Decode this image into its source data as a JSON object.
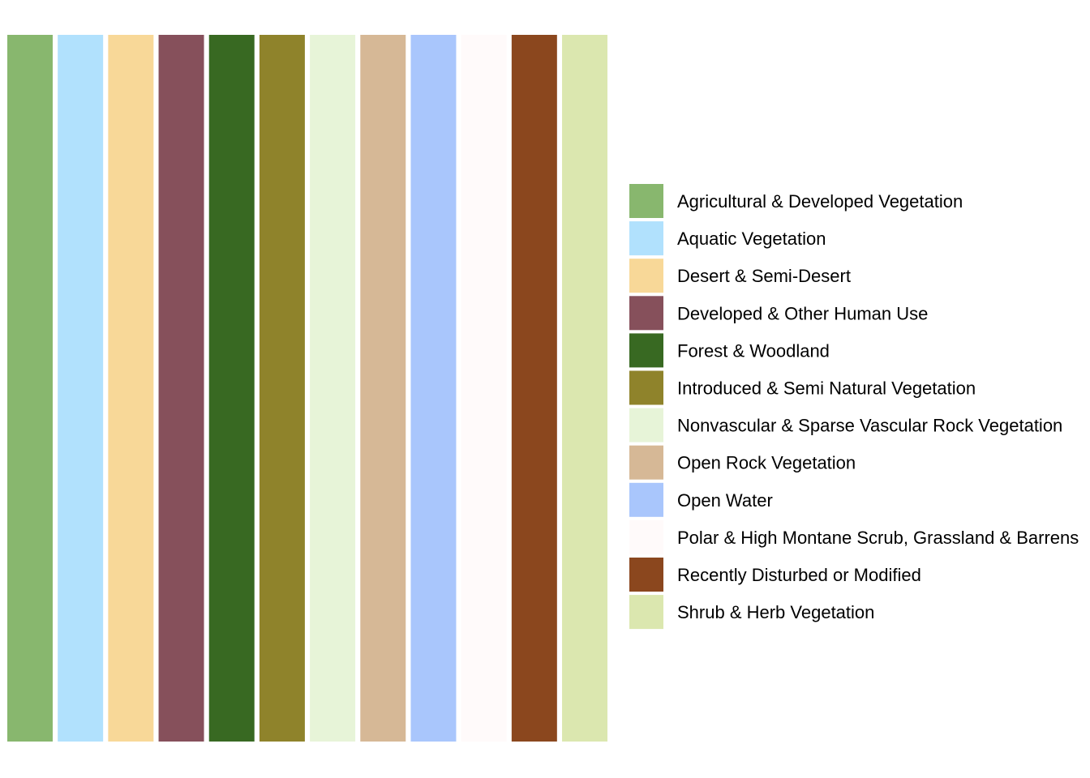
{
  "chart_data": {
    "type": "bar",
    "categories": [
      "Agricultural & Developed Vegetation",
      "Aquatic Vegetation",
      "Desert & Semi-Desert",
      "Developed & Other Human Use",
      "Forest & Woodland",
      "Introduced & Semi Natural Vegetation",
      "Nonvascular & Sparse Vascular Rock Vegetation",
      "Open Rock Vegetation",
      "Open Water",
      "Polar & High Montane Scrub, Grassland & Barrens",
      "Recently Disturbed or Modified",
      "Shrub & Herb Vegetation"
    ],
    "values": [
      1,
      1,
      1,
      1,
      1,
      1,
      1,
      1,
      1,
      1,
      1,
      1
    ],
    "colors": [
      "#88B76E",
      "#B1E1FD",
      "#F8D898",
      "#86505B",
      "#386922",
      "#8F832B",
      "#E7F4D8",
      "#D6B896",
      "#A9C6FC",
      "#FFFAFA",
      "#8B471E",
      "#DBE7AF"
    ],
    "ylim": [
      0,
      1
    ],
    "grid": false,
    "axes": false,
    "legend": {
      "placement": "right",
      "entries": [
        "Agricultural & Developed Vegetation",
        "Aquatic Vegetation",
        "Desert & Semi-Desert",
        "Developed & Other Human Use",
        "Forest & Woodland",
        "Introduced & Semi Natural Vegetation",
        "Nonvascular & Sparse Vascular Rock Vegetation",
        "Open Rock Vegetation",
        "Open Water",
        "Polar & High Montane Scrub, Grassland & Barrens",
        "Recently Disturbed or Modified",
        "Shrub & Herb Vegetation"
      ]
    }
  }
}
